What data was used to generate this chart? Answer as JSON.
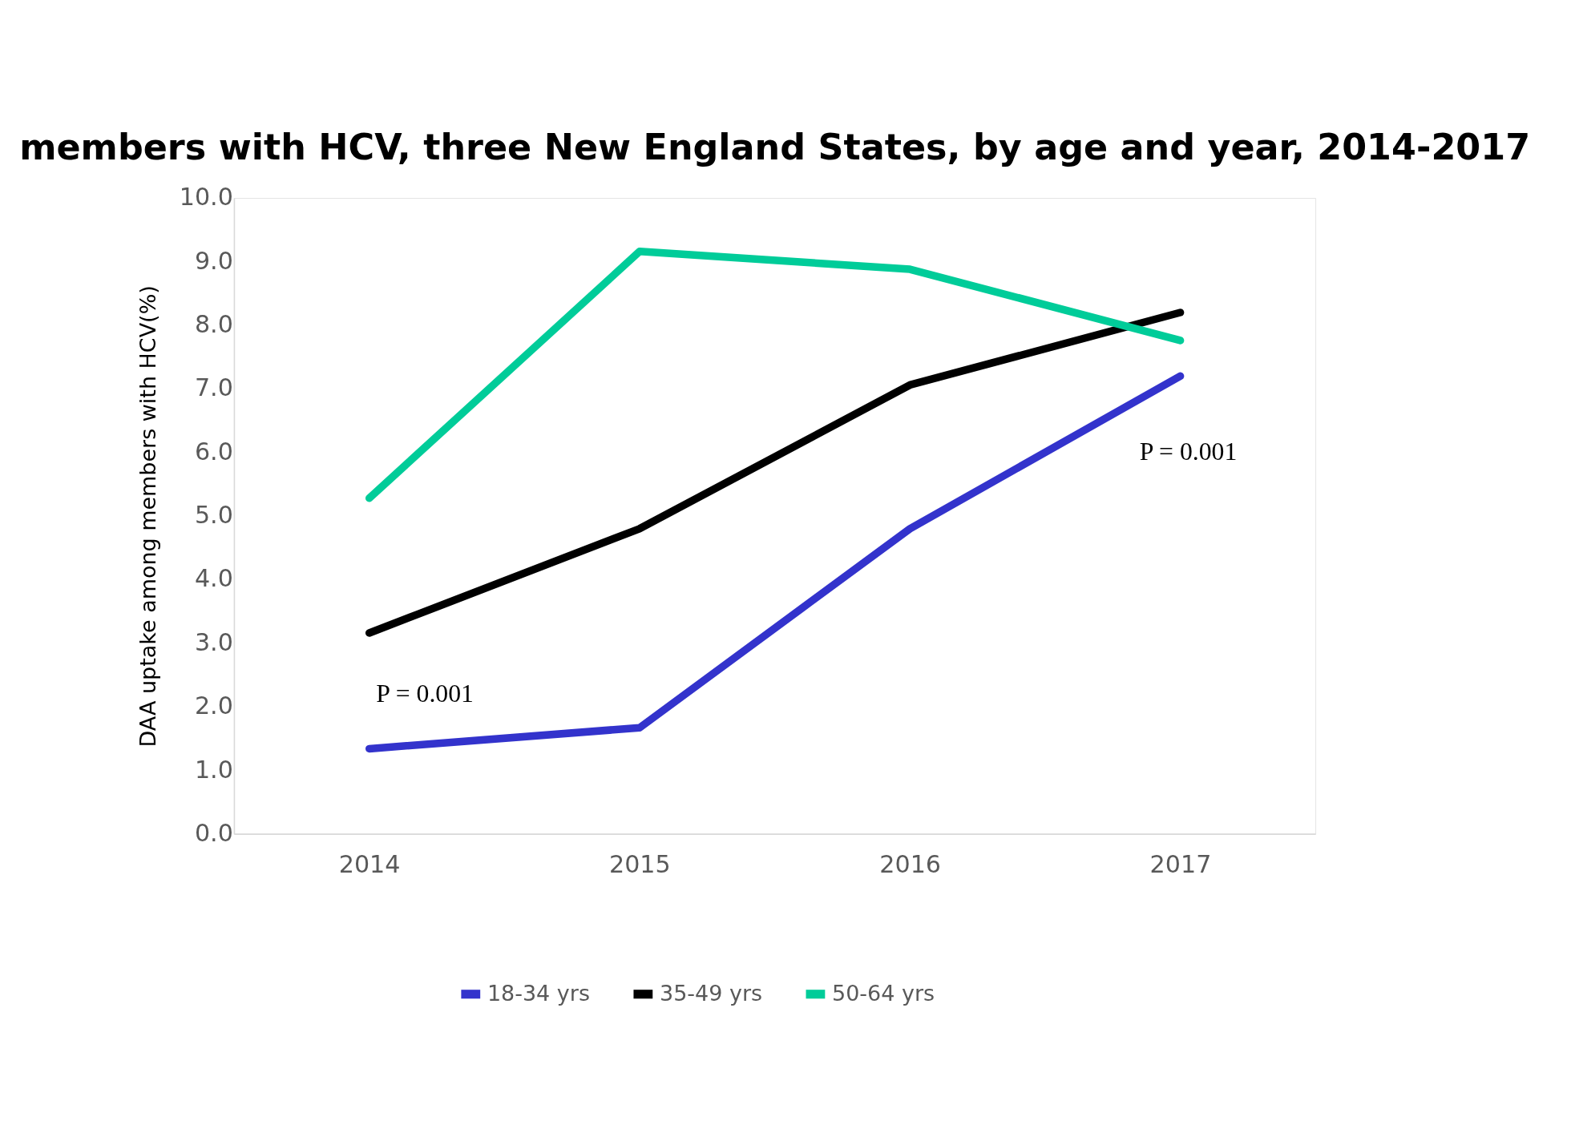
{
  "chart_data": {
    "type": "line",
    "title": "members with HCV, three New England States, by age and year,  2014-2017",
    "ylabel": "DAA uptake among members with HCV(%)",
    "categories": [
      "2014",
      "2015",
      "2016",
      "2017"
    ],
    "series": [
      {
        "name": "18-34 yrs",
        "color": "#3333cc",
        "values": [
          1.34,
          1.67,
          4.8,
          7.2
        ]
      },
      {
        "name": "35-49 yrs",
        "color": "#000000",
        "values": [
          3.16,
          4.8,
          7.06,
          8.2
        ]
      },
      {
        "name": "50-64 yrs",
        "color": "#00cc99",
        "values": [
          5.28,
          9.16,
          8.88,
          7.76
        ]
      }
    ],
    "ylim": [
      0,
      10
    ],
    "yticks": [
      {
        "value": 0,
        "label": "0.0"
      },
      {
        "value": 1,
        "label": "1.0"
      },
      {
        "value": 2,
        "label": "2.0"
      },
      {
        "value": 3,
        "label": "3.0"
      },
      {
        "value": 4,
        "label": "4.0"
      },
      {
        "value": 5,
        "label": "5.0"
      },
      {
        "value": 6,
        "label": "6.0"
      },
      {
        "value": 7,
        "label": "7.0"
      },
      {
        "value": 8,
        "label": "8.0"
      },
      {
        "value": 9,
        "label": "9.0"
      },
      {
        "value": 10,
        "label": "10.0"
      }
    ],
    "annotations": [
      "P = 0.001",
      "P = 0.001"
    ],
    "grid": false,
    "legend": "bottom",
    "marker": "none",
    "line_style": "solid"
  }
}
